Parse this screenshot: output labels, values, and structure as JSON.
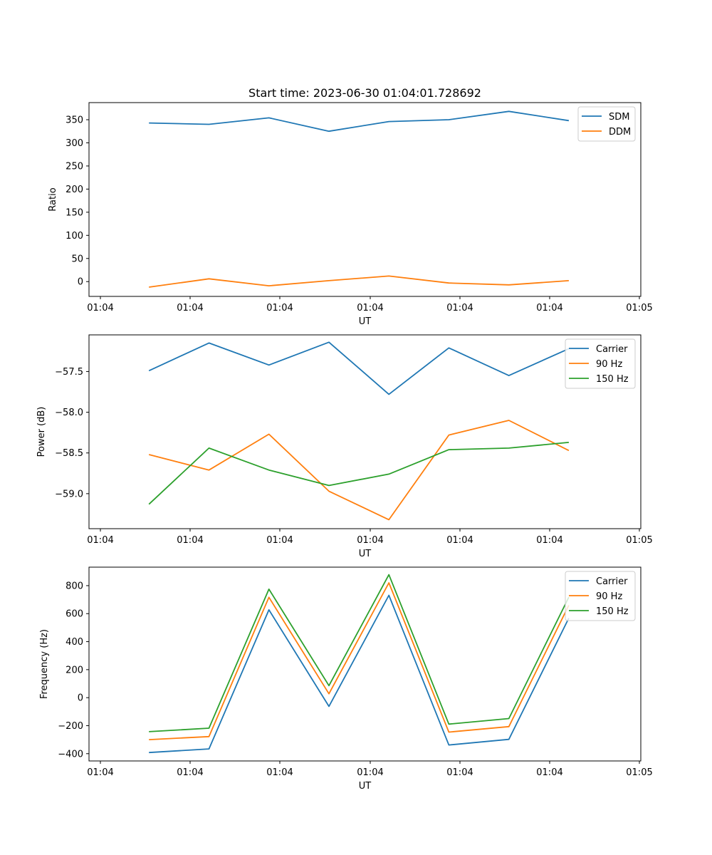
{
  "chart_data": [
    {
      "type": "line",
      "title": "Start time: 2023-06-30 01:04:01.728692",
      "xlabel": "UT",
      "ylabel": "Ratio",
      "x": [
        "01:04:02.5",
        "01:04:03.0",
        "01:04:03.5",
        "01:04:04.0",
        "01:04:04.5",
        "01:04:05.0",
        "01:04:05.5",
        "01:04:06.0"
      ],
      "xlim": [
        "01:04:02.0",
        "01:04:06.6"
      ],
      "x_ticks": [
        "01:04",
        "01:04",
        "01:04",
        "01:04",
        "01:04",
        "01:04",
        "01:05"
      ],
      "ylim": [
        -32,
        387
      ],
      "yticks": [
        0,
        50,
        100,
        150,
        200,
        250,
        300,
        350
      ],
      "ytick_labels": [
        "0",
        "50",
        "100",
        "150",
        "200",
        "250",
        "300",
        "350"
      ],
      "legend_position": "top-right",
      "series": [
        {
          "name": "SDM",
          "color": "#1f77b4",
          "values": [
            343,
            340,
            354,
            325,
            346,
            350,
            368,
            348
          ]
        },
        {
          "name": "DDM",
          "color": "#ff7f0e",
          "values": [
            -12,
            6,
            -9,
            2,
            12,
            -3,
            -7,
            2
          ]
        }
      ]
    },
    {
      "type": "line",
      "title": "",
      "xlabel": "UT",
      "ylabel": "Power (dB)",
      "x": [
        "01:04:02.5",
        "01:04:03.0",
        "01:04:03.5",
        "01:04:04.0",
        "01:04:04.5",
        "01:04:05.0",
        "01:04:05.5",
        "01:04:06.0"
      ],
      "xlim": [
        "01:04:02.0",
        "01:04:06.6"
      ],
      "x_ticks": [
        "01:04",
        "01:04",
        "01:04",
        "01:04",
        "01:04",
        "01:04",
        "01:05"
      ],
      "ylim": [
        -59.43,
        -57.05
      ],
      "yticks": [
        -59.0,
        -58.5,
        -58.0,
        -57.5
      ],
      "ytick_labels": [
        "−59.0",
        "−58.5",
        "−58.0",
        "−57.5"
      ],
      "legend_position": "top-right",
      "series": [
        {
          "name": "Carrier",
          "color": "#1f77b4",
          "values": [
            -57.49,
            -57.15,
            -57.42,
            -57.14,
            -57.78,
            -57.21,
            -57.55,
            -57.22
          ]
        },
        {
          "name": "90 Hz",
          "color": "#ff7f0e",
          "values": [
            -58.52,
            -58.71,
            -58.27,
            -58.97,
            -59.32,
            -58.28,
            -58.1,
            -58.47
          ]
        },
        {
          "name": "150 Hz",
          "color": "#2ca02c",
          "values": [
            -59.13,
            -58.44,
            -58.71,
            -58.9,
            -58.76,
            -58.46,
            -58.44,
            -58.37
          ]
        }
      ]
    },
    {
      "type": "line",
      "title": "",
      "xlabel": "UT",
      "ylabel": "Frequency (Hz)",
      "x": [
        "01:04:02.5",
        "01:04:03.0",
        "01:04:03.5",
        "01:04:04.0",
        "01:04:04.5",
        "01:04:05.0",
        "01:04:05.5",
        "01:04:06.0"
      ],
      "xlim": [
        "01:04:02.0",
        "01:04:06.6"
      ],
      "x_ticks": [
        "01:04",
        "01:04",
        "01:04",
        "01:04",
        "01:04",
        "01:04",
        "01:05"
      ],
      "ylim": [
        -452,
        932
      ],
      "yticks": [
        -400,
        -200,
        0,
        200,
        400,
        600,
        800
      ],
      "ytick_labels": [
        "−400",
        "−200",
        "0",
        "200",
        "400",
        "600",
        "800"
      ],
      "legend_position": "top-right",
      "series": [
        {
          "name": "Carrier",
          "color": "#1f77b4",
          "values": [
            -392,
            -366,
            627,
            -62,
            731,
            -338,
            -298,
            568
          ]
        },
        {
          "name": "90 Hz",
          "color": "#ff7f0e",
          "values": [
            -300,
            -278,
            717,
            28,
            820,
            -246,
            -207,
            660
          ]
        },
        {
          "name": "150 Hz",
          "color": "#2ca02c",
          "values": [
            -243,
            -218,
            775,
            86,
            878,
            -189,
            -149,
            718
          ]
        }
      ]
    }
  ]
}
